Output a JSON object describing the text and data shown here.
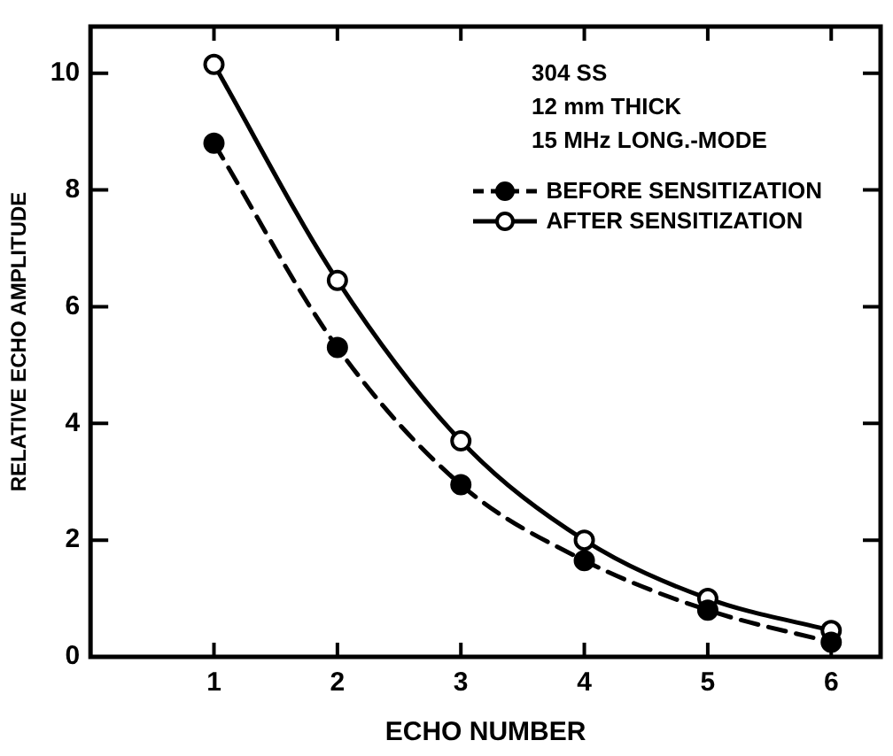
{
  "chart_data": {
    "type": "line",
    "xlabel": "ECHO NUMBER",
    "ylabel": "RELATIVE ECHO AMPLITUDE",
    "x": [
      1,
      2,
      3,
      4,
      5,
      6
    ],
    "series": [
      {
        "name": "BEFORE SENSITIZATION",
        "color": "#000000",
        "values": [
          8.8,
          5.3,
          2.95,
          1.65,
          0.8,
          0.25
        ],
        "line_style": "dashed"
      },
      {
        "name": "AFTER SENSITIZATION",
        "color": "#000000",
        "values": [
          10.15,
          6.45,
          3.7,
          2.0,
          1.0,
          0.45
        ],
        "line_style": "solid"
      }
    ],
    "xlim": [
      0,
      6.4
    ],
    "xticks": [
      1,
      2,
      3,
      4,
      5,
      6
    ],
    "ylim": [
      0,
      10.8
    ],
    "yticks": [
      0,
      2,
      4,
      6,
      8,
      10
    ],
    "annotations": [
      "304 SS",
      "12 mm THICK",
      "15 MHz LONG.-MODE"
    ],
    "marker": "circle",
    "grid": false,
    "legend": "top right"
  }
}
